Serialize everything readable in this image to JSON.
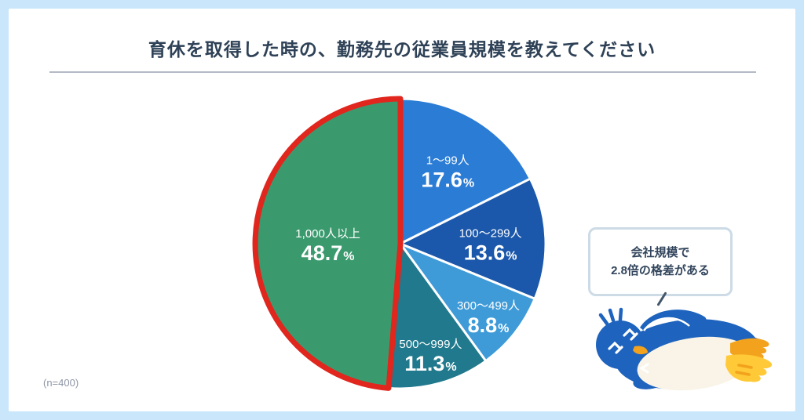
{
  "page": {
    "title": "育休を取得した時の、勤務先の従業員規模を教えてください",
    "sample_label": "(n=400)"
  },
  "callout": {
    "line1": "会社規模で",
    "line2": "2.8倍の格差がある"
  },
  "icons": {
    "mascot": "sleeping-penguin-illustration"
  },
  "colors": {
    "page_background": "#c9e6fa",
    "card_background": "#ffffff",
    "title_text": "#2e4156",
    "divider": "#b4bac6",
    "muted_text": "#8e96a5",
    "callout_border": "#ccdbe6",
    "highlight_outline": "#e0261d",
    "label_text_on_pie": "#ffffff"
  },
  "chart_data": {
    "type": "pie",
    "title": "育休を取得した時の、勤務先の従業員規模を教えてください",
    "sample_size": 400,
    "start_angle_deg": 0,
    "direction": "clockwise",
    "legend_position": "none",
    "labels_inside": true,
    "unit": "%",
    "segments": [
      {
        "label": "1〜99人",
        "value": 17.6,
        "color": "#2b7cd5"
      },
      {
        "label": "100〜299人",
        "value": 13.6,
        "color": "#1b57aa"
      },
      {
        "label": "300〜499人",
        "value": 8.8,
        "color": "#3e9bd8"
      },
      {
        "label": "500〜999人",
        "value": 11.3,
        "color": "#20798c"
      },
      {
        "label": "1,000人以上",
        "value": 48.7,
        "color": "#3a9a6e",
        "highlight_outline": "#e0261d"
      }
    ]
  }
}
